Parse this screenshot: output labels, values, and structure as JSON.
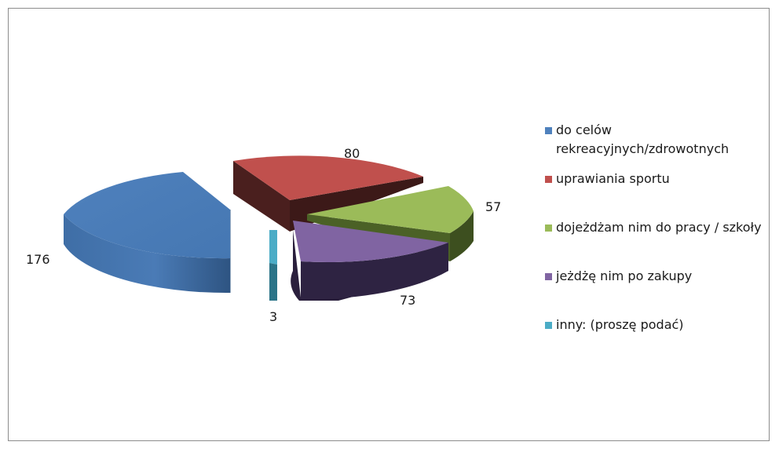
{
  "chart_data": {
    "type": "pie",
    "title": "",
    "categories": [
      "do celów rekreacyjnych/zdrowotnych",
      "uprawiania sportu",
      "dojeżdżam nim do pracy / szkoły",
      "jeżdżę nim po zakupy",
      "inny: (proszę podać)"
    ],
    "values": [
      176,
      80,
      57,
      73,
      3
    ],
    "labels": [
      "176",
      "80",
      "57",
      "73",
      "3"
    ],
    "colors": [
      "#4f81bd",
      "#c0504d",
      "#9bbb59",
      "#8064a2",
      "#4bacc6"
    ],
    "exploded": true,
    "three_d": true,
    "legend_position": "right"
  },
  "legend": {
    "items": [
      {
        "label_line1": "do celów",
        "label_line2": "rekreacyjnych/zdrowotnych",
        "color": "#4f81bd"
      },
      {
        "label_line1": "uprawiania sportu",
        "color": "#c0504d"
      },
      {
        "label_line1": "dojeżdżam nim do pracy / szkoły",
        "color": "#9bbb59"
      },
      {
        "label_line1": "jeżdżę nim po zakupy",
        "color": "#8064a2"
      },
      {
        "label_line1": "inny: (proszę podać)",
        "color": "#4bacc6"
      }
    ]
  }
}
